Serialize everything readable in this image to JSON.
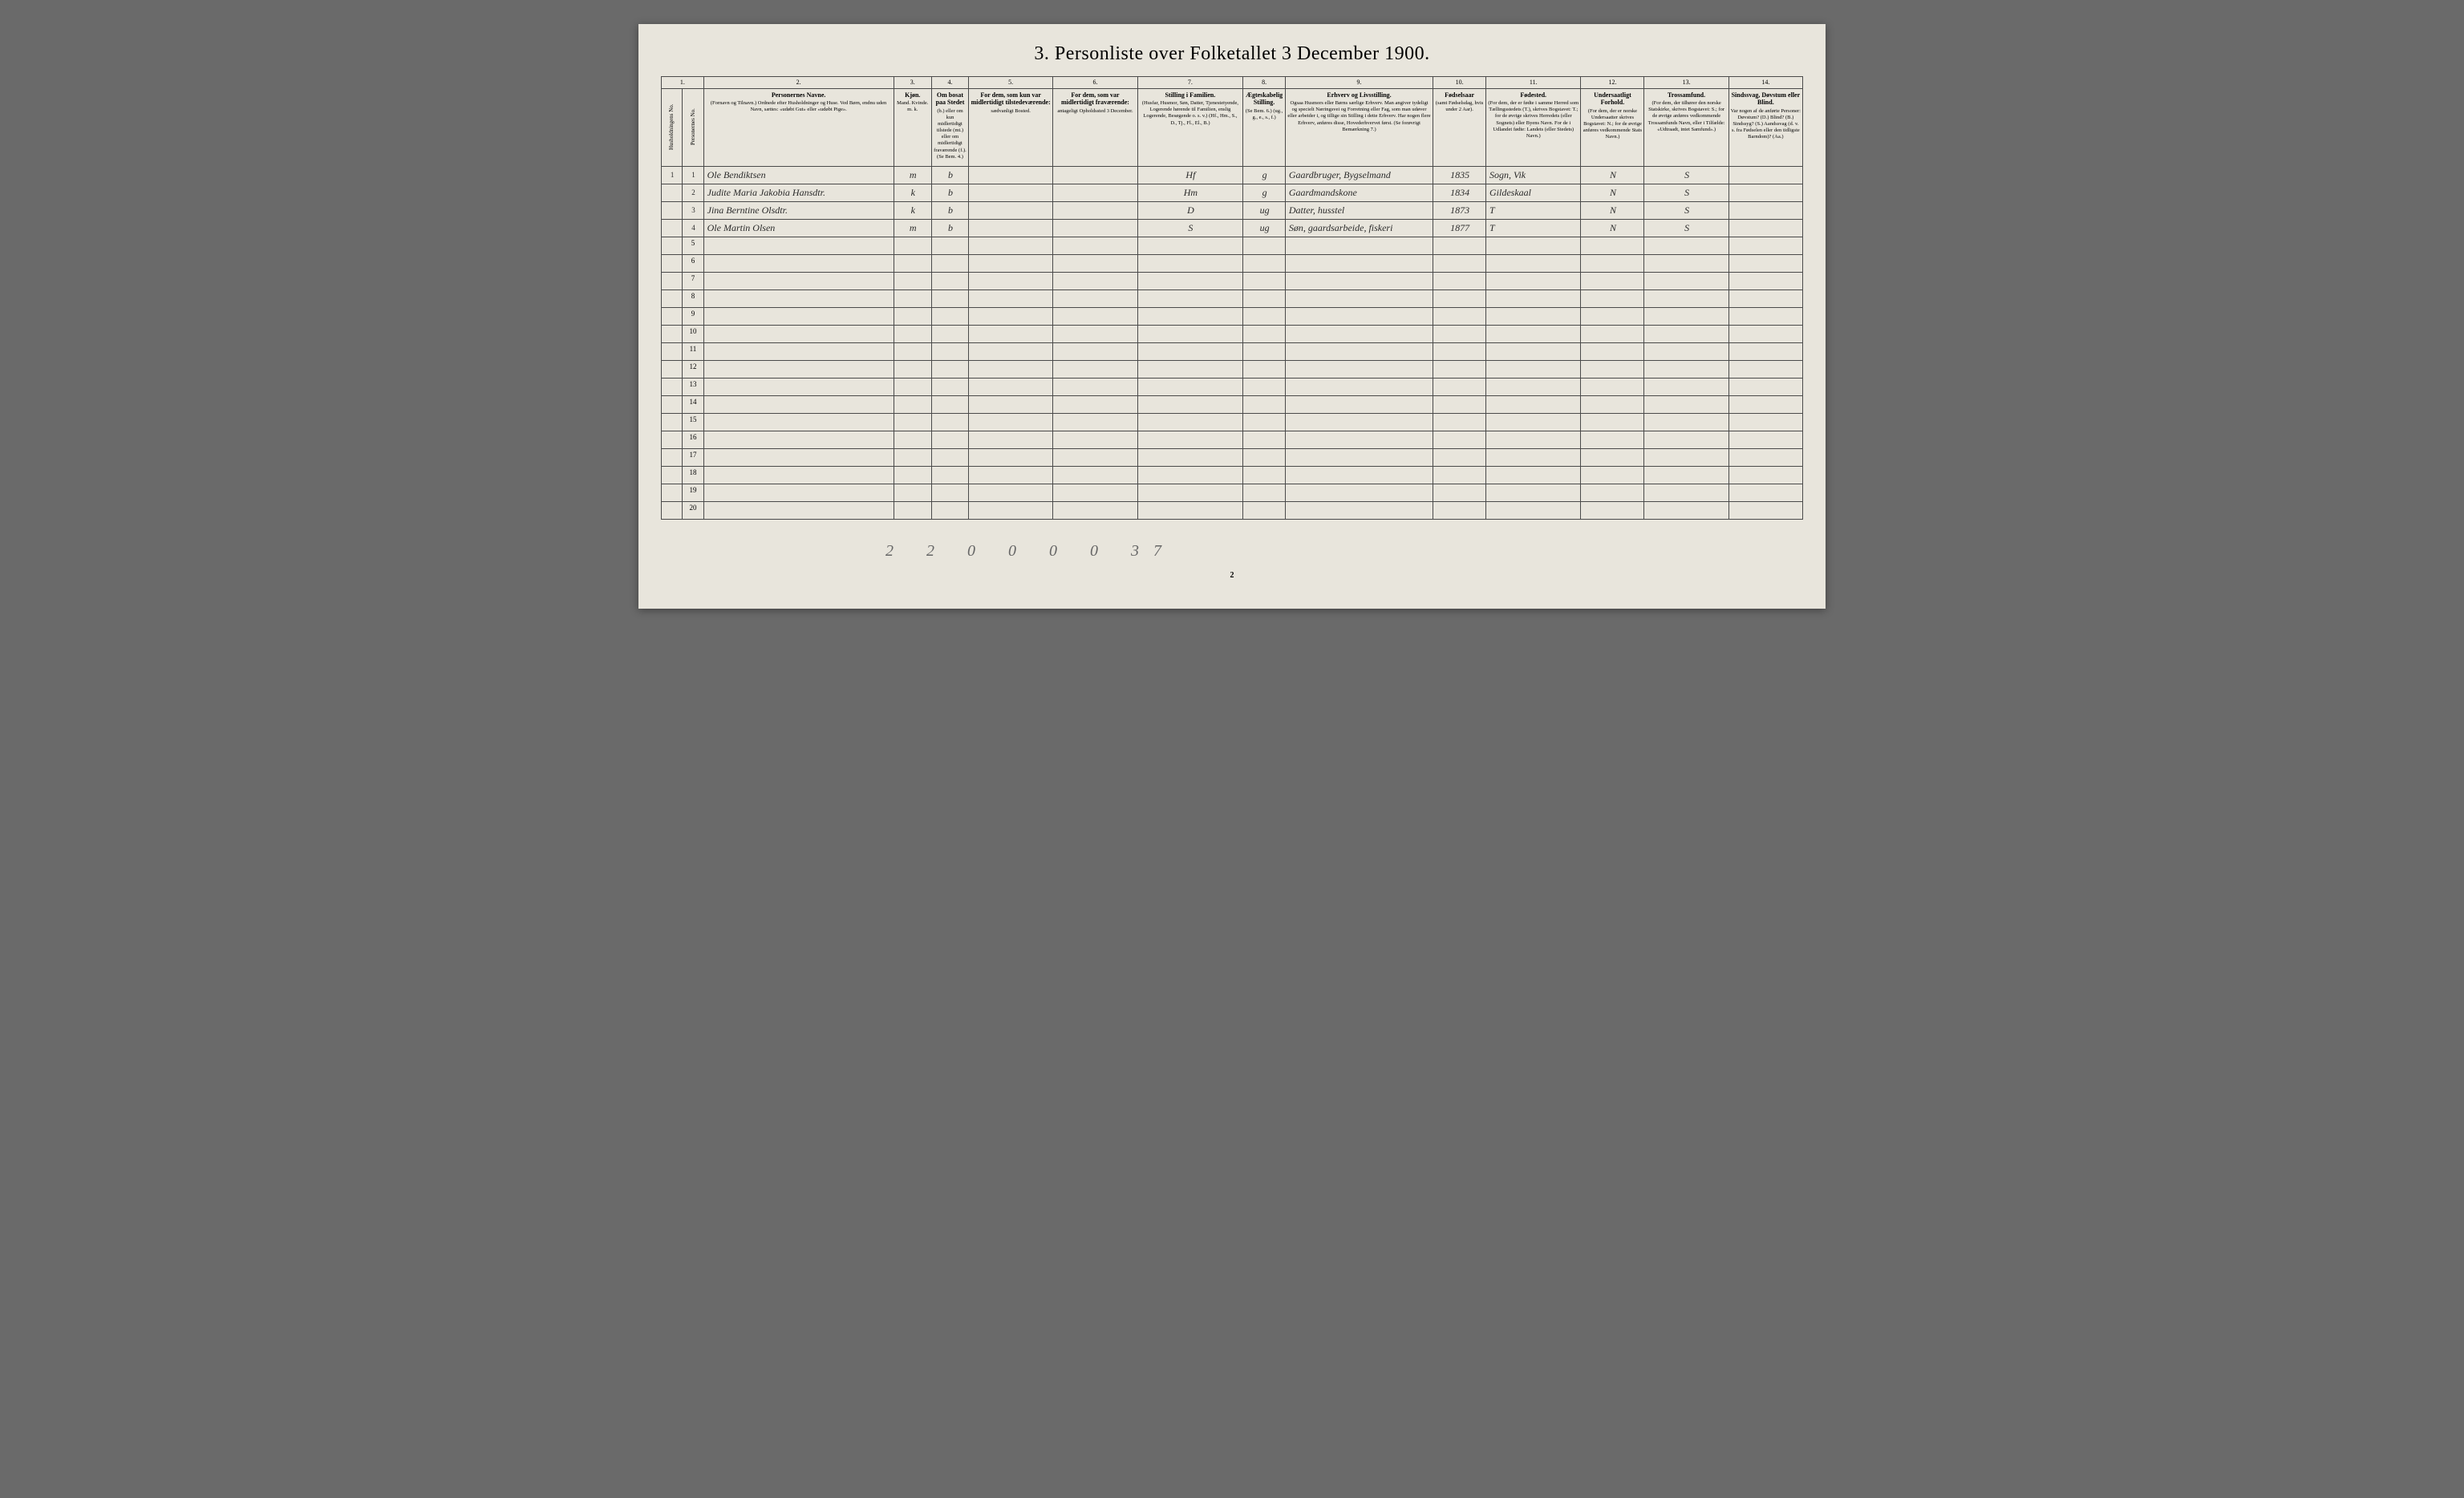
{
  "title": "3. Personliste over Folketallet 3 December 1900.",
  "page_number": "2",
  "footer_annotation": "2 2 0 0 0 0   37",
  "column_numbers": [
    "1.",
    "2.",
    "3.",
    "4.",
    "5.",
    "6.",
    "7.",
    "8.",
    "9.",
    "10.",
    "11.",
    "12.",
    "13.",
    "14."
  ],
  "col_widths_pct": [
    2,
    2,
    18,
    1.8,
    1.8,
    3.5,
    8,
    8,
    10,
    4,
    14,
    5,
    9,
    6,
    8,
    7
  ],
  "headers": {
    "c1": {
      "main": "Husholdningens No.",
      "sub": ""
    },
    "c1b": {
      "main": "Personernes No.",
      "sub": ""
    },
    "c2": {
      "main": "Personernes Navne.",
      "sub": "(Fornavn og Tilnavn.) Ordnede efter Husholdninger og Huse. Ved Børn, endnu uden Navn, sættes: «udøbt Gut» eller «udøbt Pige»."
    },
    "c3": {
      "main": "Kjøn.",
      "sub": "Mand. Kvinde. m. k."
    },
    "c4": {
      "main": "Om bosat paa Stedet",
      "sub": "(b.) eller om kun midlertidigt tilstede (mt.) eller om midlertidigt fraværende (f.). (Se Bem. 4.)"
    },
    "c5": {
      "main": "For dem, som kun var midlertidigt tilstedeværende:",
      "sub": "sædvanligt Bosted."
    },
    "c6": {
      "main": "For dem, som var midlertidigt fraværende:",
      "sub": "antageligt Opholdssted 3 December."
    },
    "c7": {
      "main": "Stilling i Familien.",
      "sub": "(Husfar, Husmor, Søn, Datter, Tjenestetyende, Logerende hørende til Familien, enslig Logerende, Besøgende o. s. v.) (Hf., Hm., S., D., Tj., Fl., El., B.)"
    },
    "c8": {
      "main": "Ægteskabelig Stilling.",
      "sub": "(Se Bem. 6.) (ug., g., e., s., f.)"
    },
    "c9": {
      "main": "Erhverv og Livsstilling.",
      "sub": "Ogsaa Husmors eller Børns særlige Erhverv. Man angiver tydeligt og specielt Næringsvei og Forretning eller Fag, som man udøver eller arbeider i, og tillige sin Stilling i dette Erhverv. Har nogen flere Erhverv, anføres disse, Hovederhvervet først. (Se forøvrigt Bemærkning 7.)"
    },
    "c10": {
      "main": "Fødselsaar",
      "sub": "(samt Fødselsdag, hvis under 2 Aar)."
    },
    "c11": {
      "main": "Fødested.",
      "sub": "(For dem, der er fødte i samme Herred som Tællingsstedets (T.), skrives Bogstavet: T.; for de øvrige skrives Herredets (eller Sognets) eller Byens Navn. For de i Udlandet fødte: Landets (eller Stedets) Navn.)"
    },
    "c12": {
      "main": "Undersaatligt Forhold.",
      "sub": "(For dem, der er norske Undersaatter skrives Bogstavet: N.; for de øvrige anføres vedkommende Stats Navn.)"
    },
    "c13": {
      "main": "Trossamfund.",
      "sub": "(For dem, der tilhører den norske Statskirke, skrives Bogstavet: S.; for de øvrige anføres vedkommende Trossamfunds Navn, eller i Tilfælde: «Udtraadt, intet Samfund».)"
    },
    "c14": {
      "main": "Sindssvag, Døvstum eller Blind.",
      "sub": "Var nogen af de anførte Personer: Døvstum? (D.) Blind? (B.) Sindssyg? (S.) Aandssvag (d. v. s. fra Fødselen eller den tidligste Barndom)? (Aa.)"
    }
  },
  "rows": [
    {
      "hh": "1",
      "pn": "1",
      "name": "Ole Bendiktsen",
      "sex": "m",
      "res": "b",
      "temp": "",
      "abs": "",
      "fam": "Hf",
      "mar": "g",
      "occ": "Gaardbruger, Bygselmand",
      "born": "1835",
      "place": "Sogn, Vik",
      "nat": "N",
      "rel": "S",
      "dis": ""
    },
    {
      "hh": "",
      "pn": "2",
      "name": "Judite Maria Jakobia Hansdtr.",
      "sex": "k",
      "res": "b",
      "temp": "",
      "abs": "",
      "fam": "Hm",
      "mar": "g",
      "occ": "Gaardmandskone",
      "born": "1834",
      "place": "Gildeskaal",
      "nat": "N",
      "rel": "S",
      "dis": ""
    },
    {
      "hh": "",
      "pn": "3",
      "name": "Jina Berntine Olsdtr.",
      "sex": "k",
      "res": "b",
      "temp": "",
      "abs": "",
      "fam": "D",
      "mar": "ug",
      "occ": "Datter, husstel",
      "born": "1873",
      "place": "T",
      "nat": "N",
      "rel": "S",
      "dis": ""
    },
    {
      "hh": "",
      "pn": "4",
      "name": "Ole Martin Olsen",
      "sex": "m",
      "res": "b",
      "temp": "",
      "abs": "",
      "fam": "S",
      "mar": "ug",
      "occ": "Søn, gaardsarbeide, fiskeri",
      "born": "1877",
      "place": "T",
      "nat": "N",
      "rel": "S",
      "dis": ""
    }
  ],
  "empty_row_count": 16,
  "empty_row_start": 5,
  "styling": {
    "page_bg": "#e8e5dc",
    "body_bg": "#6a6a6a",
    "border_color": "#4a4a4a",
    "title_fontsize": 24,
    "header_fontsize": 8,
    "data_fontsize": 12,
    "handwriting_font": "Brush Script MT",
    "print_font": "Georgia"
  }
}
